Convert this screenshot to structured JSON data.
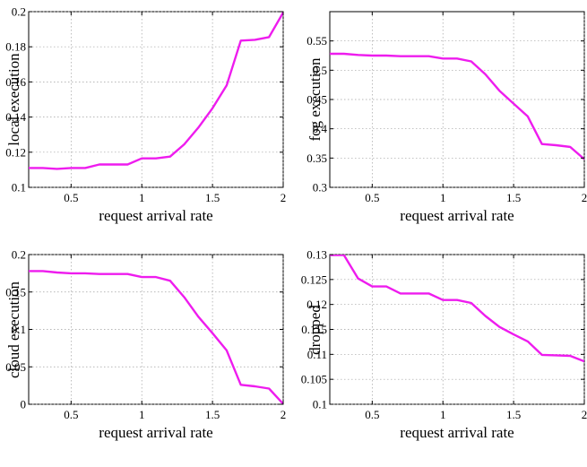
{
  "chart_data": [
    {
      "type": "line",
      "title": "",
      "xlabel": "request arrival rate",
      "ylabel": "local execution",
      "xlim": [
        0.2,
        2
      ],
      "ylim": [
        0.1,
        0.2
      ],
      "xticks": [
        0.5,
        1,
        1.5,
        2
      ],
      "xtick_labels": [
        "0.5",
        "1",
        "1.5",
        "2"
      ],
      "yticks": [
        0.1,
        0.12,
        0.14,
        0.16,
        0.18,
        0.2
      ],
      "ytick_labels": [
        "0.1",
        "0.12",
        "0.14",
        "0.16",
        "0.18",
        "0.2"
      ],
      "grid": true,
      "color": "#ee1cee",
      "x": [
        0.2,
        0.3,
        0.4,
        0.5,
        0.6,
        0.7,
        0.8,
        0.9,
        1.0,
        1.1,
        1.2,
        1.3,
        1.4,
        1.5,
        1.6,
        1.7,
        1.8,
        1.9,
        2.0
      ],
      "y": [
        0.111,
        0.111,
        0.1105,
        0.111,
        0.111,
        0.113,
        0.113,
        0.113,
        0.1165,
        0.1165,
        0.1175,
        0.1245,
        0.134,
        0.145,
        0.158,
        0.1835,
        0.184,
        0.1855,
        0.1995
      ]
    },
    {
      "type": "line",
      "title": "",
      "xlabel": "request arrival rate",
      "ylabel": "fog execution",
      "xlim": [
        0.2,
        2
      ],
      "ylim": [
        0.3,
        0.6
      ],
      "xticks": [
        0.5,
        1,
        1.5,
        2
      ],
      "xtick_labels": [
        "0.5",
        "1",
        "1.5",
        "2"
      ],
      "yticks": [
        0.3,
        0.35,
        0.4,
        0.45,
        0.5,
        0.55
      ],
      "ytick_labels": [
        "0.3",
        "0.35",
        "0.4",
        "0.45",
        "0.5",
        "0.55"
      ],
      "grid": true,
      "color": "#ee1cee",
      "x": [
        0.2,
        0.3,
        0.4,
        0.5,
        0.6,
        0.7,
        0.8,
        0.9,
        1.0,
        1.1,
        1.2,
        1.3,
        1.4,
        1.5,
        1.6,
        1.7,
        1.8,
        1.9,
        2.0
      ],
      "y": [
        0.528,
        0.528,
        0.526,
        0.525,
        0.525,
        0.524,
        0.524,
        0.524,
        0.52,
        0.52,
        0.515,
        0.493,
        0.465,
        0.443,
        0.421,
        0.374,
        0.372,
        0.369,
        0.348
      ]
    },
    {
      "type": "line",
      "title": "",
      "xlabel": "request arrival rate",
      "ylabel": "cloud execution",
      "xlim": [
        0.2,
        2
      ],
      "ylim": [
        0,
        0.2
      ],
      "xticks": [
        0.5,
        1,
        1.5,
        2
      ],
      "xtick_labels": [
        "0.5",
        "1",
        "1.5",
        "2"
      ],
      "yticks": [
        0,
        0.05,
        0.1,
        0.15,
        0.2
      ],
      "ytick_labels": [
        "0",
        "0.05",
        "0.1",
        "0.15",
        "0.2"
      ],
      "grid": true,
      "color": "#ee1cee",
      "x": [
        0.2,
        0.3,
        0.4,
        0.5,
        0.6,
        0.7,
        0.8,
        0.9,
        1.0,
        1.1,
        1.2,
        1.3,
        1.4,
        1.5,
        1.6,
        1.7,
        1.8,
        1.9,
        2.0
      ],
      "y": [
        0.178,
        0.178,
        0.176,
        0.175,
        0.175,
        0.174,
        0.174,
        0.174,
        0.17,
        0.17,
        0.165,
        0.143,
        0.117,
        0.095,
        0.072,
        0.026,
        0.024,
        0.021,
        0.0005
      ]
    },
    {
      "type": "line",
      "title": "",
      "xlabel": "request arrival rate",
      "ylabel": "dropped",
      "xlim": [
        0.2,
        2
      ],
      "ylim": [
        0.1,
        0.13
      ],
      "xticks": [
        0.5,
        1,
        1.5,
        2
      ],
      "xtick_labels": [
        "0.5",
        "1",
        "1.5",
        "2"
      ],
      "yticks": [
        0.1,
        0.105,
        0.11,
        0.115,
        0.12,
        0.125,
        0.13
      ],
      "ytick_labels": [
        "0.1",
        "0.105",
        "0.11",
        "0.115",
        "0.12",
        "0.125",
        "0.13"
      ],
      "grid": true,
      "color": "#ee1cee",
      "x": [
        0.2,
        0.3,
        0.4,
        0.5,
        0.6,
        0.7,
        0.8,
        0.9,
        1.0,
        1.1,
        1.2,
        1.3,
        1.4,
        1.5,
        1.6,
        1.7,
        1.8,
        1.9,
        2.0
      ],
      "y": [
        0.1299,
        0.1299,
        0.1252,
        0.1236,
        0.1236,
        0.1222,
        0.1222,
        0.1222,
        0.1209,
        0.1209,
        0.1203,
        0.1177,
        0.1155,
        0.114,
        0.1126,
        0.1099,
        0.1098,
        0.1097,
        0.1086
      ]
    }
  ]
}
